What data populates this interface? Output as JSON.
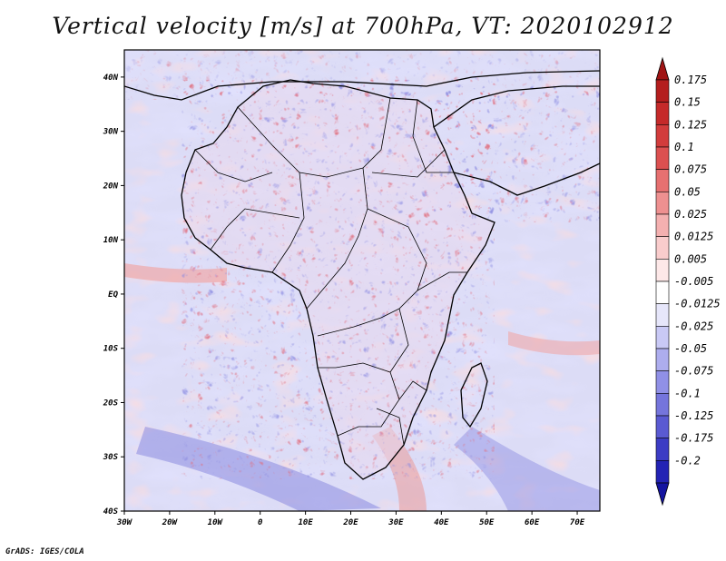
{
  "title": "Vertical velocity [m/s] at 700hPa, VT: 2020102912",
  "credit": "GrADS: IGES/COLA",
  "map": {
    "lon_range": [
      -30,
      75
    ],
    "lat_range": [
      -40,
      45
    ],
    "lat_ticks": [
      {
        "value": 40,
        "label": "40N"
      },
      {
        "value": 30,
        "label": "30N"
      },
      {
        "value": 20,
        "label": "20N"
      },
      {
        "value": 10,
        "label": "10N"
      },
      {
        "value": 0,
        "label": "EQ"
      },
      {
        "value": -10,
        "label": "10S"
      },
      {
        "value": -20,
        "label": "20S"
      },
      {
        "value": -30,
        "label": "30S"
      },
      {
        "value": -40,
        "label": "40S"
      }
    ],
    "lon_ticks": [
      {
        "value": -30,
        "label": "30W"
      },
      {
        "value": -20,
        "label": "20W"
      },
      {
        "value": -10,
        "label": "10W"
      },
      {
        "value": 0,
        "label": "0"
      },
      {
        "value": 10,
        "label": "10E"
      },
      {
        "value": 20,
        "label": "20E"
      },
      {
        "value": 30,
        "label": "30E"
      },
      {
        "value": 40,
        "label": "40E"
      },
      {
        "value": 50,
        "label": "50E"
      },
      {
        "value": 60,
        "label": "60E"
      },
      {
        "value": 70,
        "label": "70E"
      }
    ],
    "field": "vertical velocity, 700hPa"
  },
  "colorbar": {
    "levels": [
      {
        "label": "0.175",
        "color": "#b41e1e"
      },
      {
        "label": "0.15",
        "color": "#c52a2a"
      },
      {
        "label": "0.125",
        "color": "#d23c3c"
      },
      {
        "label": "0.1",
        "color": "#dc5050"
      },
      {
        "label": "0.075",
        "color": "#e67070"
      },
      {
        "label": "0.05",
        "color": "#ee9090"
      },
      {
        "label": "0.025",
        "color": "#f4b0b0"
      },
      {
        "label": "0.0125",
        "color": "#f9cccc"
      },
      {
        "label": "0.005",
        "color": "#fde8e8"
      },
      {
        "label": "-0.005",
        "color": "#ffffff"
      },
      {
        "label": "-0.0125",
        "color": "#e6e6fa"
      },
      {
        "label": "-0.025",
        "color": "#c9c9f5"
      },
      {
        "label": "-0.05",
        "color": "#adadee"
      },
      {
        "label": "-0.075",
        "color": "#9090e6"
      },
      {
        "label": "-0.1",
        "color": "#7575dc"
      },
      {
        "label": "-0.125",
        "color": "#5a5ad2"
      },
      {
        "label": "-0.175",
        "color": "#3c3cc4"
      },
      {
        "label": "-0.2",
        "color": "#2323b4"
      }
    ],
    "top_arrow_color": "#a01414",
    "bottom_arrow_color": "#1414a0"
  }
}
